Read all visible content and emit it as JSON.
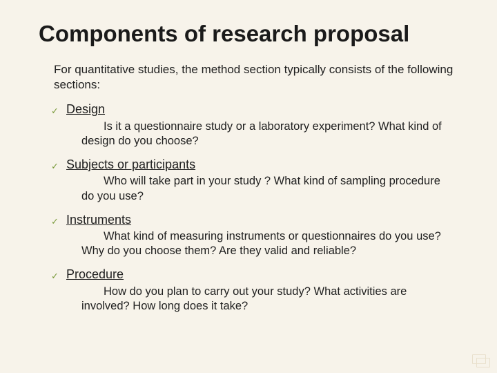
{
  "title": "Components of research proposal",
  "intro": "For quantitative studies, the method section typically consists of the following sections:",
  "items": [
    {
      "title": "Design",
      "desc": "Is it a questionnaire study or a laboratory experiment? What kind of design do you choose?"
    },
    {
      "title": "Subjects or participants",
      "desc": "Who will take part in your study ? What kind of sampling procedure do you use?"
    },
    {
      "title": "Instruments",
      "desc": "What kind of measuring instruments or questionnaires do you use? Why do you choose them? Are they valid and reliable?"
    },
    {
      "title": "Procedure",
      "desc": "How do you plan to carry out your study? What activities are involved? How long does it take?"
    }
  ],
  "colors": {
    "background": "#f7f3ea",
    "text": "#202020",
    "check": "#7a9a3b"
  },
  "typography": {
    "title_fontsize": 33,
    "title_weight": 700,
    "intro_fontsize": 17,
    "item_title_fontsize": 18,
    "item_desc_fontsize": 16.5,
    "font_family": "Arial"
  },
  "bullet_glyph": "✓"
}
